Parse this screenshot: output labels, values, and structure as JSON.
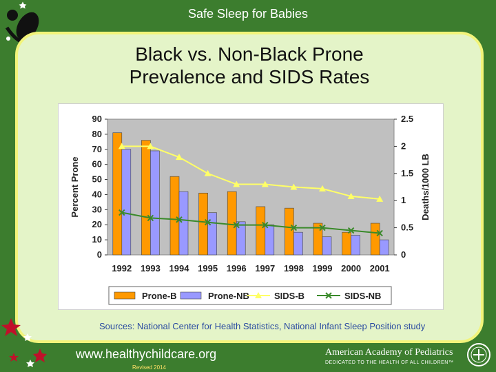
{
  "header": {
    "title": "Safe Sleep for Babies"
  },
  "slide": {
    "title_line1": "Black vs. Non-Black Prone",
    "title_line2": "Prevalence and SIDS Rates",
    "sources": "Sources:  National Center for Health Statistics, National Infant Sleep Position study",
    "website": "www.healthychildcare.org",
    "revised": "Revised 2014",
    "aap_name": "American Academy of Pediatrics",
    "aap_tagline": "DEDICATED TO THE HEALTH OF ALL CHILDREN™"
  },
  "icons": {
    "logo": "baby-silhouette-logo-icon",
    "stars": "decorative-stars-icon",
    "seal": "aap-seal-icon"
  },
  "colors": {
    "background": "#3c7d2e",
    "panel": "#e4f4c8",
    "panel_border": "#f2f47a",
    "plot_area": "#c0c0c0",
    "prone_b": "#ff9900",
    "prone_nb": "#9999ff",
    "sids_b": "#ffff66",
    "sids_nb": "#3a8a2a"
  },
  "chart_data": {
    "type": "bar",
    "categories": [
      "1992",
      "1993",
      "1994",
      "1995",
      "1996",
      "1997",
      "1998",
      "1999",
      "2000",
      "2001"
    ],
    "series": [
      {
        "name": "Prone-B",
        "kind": "bar",
        "axis": "left",
        "values": [
          81,
          76,
          52,
          41,
          42,
          32,
          31,
          21,
          15,
          21
        ]
      },
      {
        "name": "Prone-NB",
        "kind": "bar",
        "axis": "left",
        "values": [
          70,
          69,
          42,
          28,
          22,
          20,
          15,
          12,
          13,
          10
        ]
      },
      {
        "name": "SIDS-B",
        "kind": "line",
        "axis": "right",
        "marker": "triangle",
        "values": [
          2.0,
          2.0,
          1.8,
          1.5,
          1.3,
          1.3,
          1.25,
          1.22,
          1.08,
          1.03
        ]
      },
      {
        "name": "SIDS-NB",
        "kind": "line",
        "axis": "right",
        "marker": "x",
        "values": [
          0.78,
          0.68,
          0.65,
          0.6,
          0.55,
          0.55,
          0.5,
          0.5,
          0.45,
          0.4
        ]
      }
    ],
    "ylabel": "Percent Prone",
    "y2label": "Deaths/1000 LB",
    "ylim": [
      0,
      90
    ],
    "y2lim": [
      0,
      2.5
    ],
    "yticks": [
      0,
      10,
      20,
      30,
      40,
      50,
      60,
      70,
      80,
      90
    ],
    "y2ticks": [
      "0",
      "0.5",
      "1",
      "1.5",
      "2",
      "2.5"
    ],
    "grid": false,
    "legend": "bottom"
  }
}
